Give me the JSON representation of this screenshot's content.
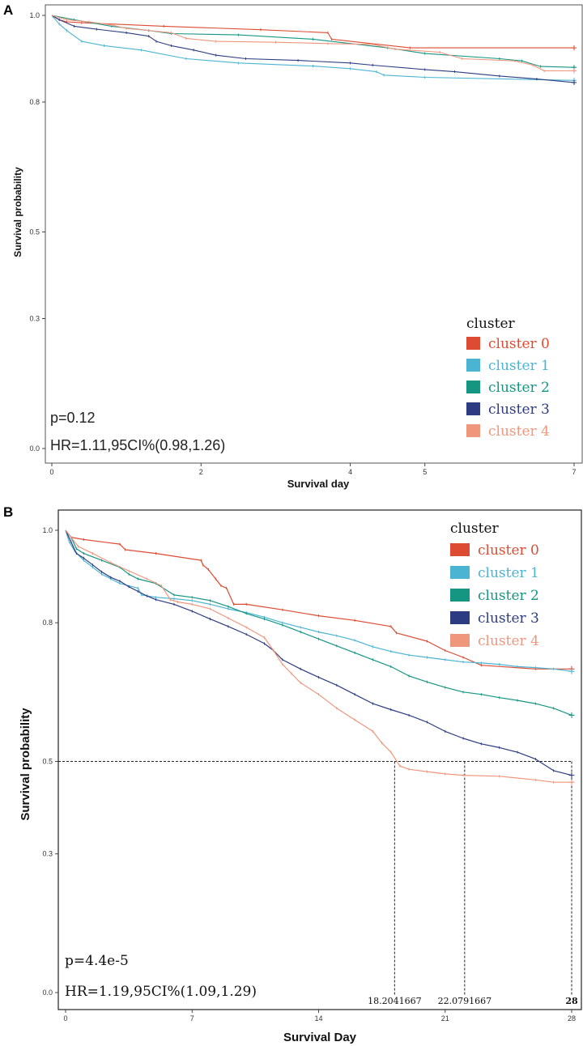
{
  "colors": {
    "cluster 0": "#dc4b32",
    "cluster 1": "#4bb4d2",
    "cluster 2": "#149682",
    "cluster 3": "#2d3c82",
    "cluster 4": "#f0967d"
  },
  "chart_data": [
    {
      "type": "line",
      "panel_label": "A",
      "xlabel": "Survival day",
      "ylabel": "Survival probability",
      "xlim": [
        0,
        7
      ],
      "ylim": [
        0,
        1
      ],
      "x_ticks": [
        0,
        2,
        4,
        5,
        7
      ],
      "y_ticks": [
        1.0,
        0.8,
        0.5,
        0.3,
        0.0
      ],
      "legend_title": "cluster",
      "legend_entries": [
        "cluster 0",
        "cluster 1",
        "cluster 2",
        "cluster 3",
        "cluster 4"
      ],
      "legend_position": "bottom-right",
      "stat_p": "p=0.12",
      "stat_hr": "HR=1.11,95CI%(0.98,1.26)",
      "series": [
        {
          "name": "cluster 0",
          "points": [
            [
              0,
              1.0
            ],
            [
              0.1,
              0.99
            ],
            [
              0.2,
              0.985
            ],
            [
              0.4,
              0.983
            ],
            [
              1.5,
              0.975
            ],
            [
              2.8,
              0.967
            ],
            [
              3.7,
              0.96
            ],
            [
              3.75,
              0.945
            ],
            [
              4.8,
              0.925
            ],
            [
              7.0,
              0.925
            ]
          ]
        },
        {
          "name": "cluster 1",
          "points": [
            [
              0,
              1.0
            ],
            [
              0.1,
              0.98
            ],
            [
              0.2,
              0.965
            ],
            [
              0.4,
              0.94
            ],
            [
              0.7,
              0.93
            ],
            [
              1.2,
              0.92
            ],
            [
              1.8,
              0.9
            ],
            [
              2.5,
              0.89
            ],
            [
              3.5,
              0.883
            ],
            [
              4.0,
              0.877
            ],
            [
              4.35,
              0.87
            ],
            [
              4.45,
              0.862
            ],
            [
              5.0,
              0.857
            ],
            [
              7.0,
              0.85
            ]
          ]
        },
        {
          "name": "cluster 2",
          "points": [
            [
              0,
              1.0
            ],
            [
              0.3,
              0.99
            ],
            [
              0.8,
              0.975
            ],
            [
              1.3,
              0.965
            ],
            [
              1.6,
              0.958
            ],
            [
              2.5,
              0.955
            ],
            [
              3.5,
              0.945
            ],
            [
              4.5,
              0.925
            ],
            [
              5.0,
              0.912
            ],
            [
              6.0,
              0.9
            ],
            [
              6.3,
              0.895
            ],
            [
              6.55,
              0.882
            ],
            [
              7.0,
              0.88
            ]
          ]
        },
        {
          "name": "cluster 3",
          "points": [
            [
              0,
              1.0
            ],
            [
              0.1,
              0.99
            ],
            [
              0.3,
              0.975
            ],
            [
              0.6,
              0.968
            ],
            [
              1.0,
              0.96
            ],
            [
              1.3,
              0.952
            ],
            [
              1.4,
              0.94
            ],
            [
              1.6,
              0.93
            ],
            [
              1.9,
              0.92
            ],
            [
              2.2,
              0.908
            ],
            [
              2.6,
              0.9
            ],
            [
              3.3,
              0.896
            ],
            [
              4.0,
              0.89
            ],
            [
              4.3,
              0.885
            ],
            [
              5.0,
              0.875
            ],
            [
              5.4,
              0.87
            ],
            [
              6.0,
              0.86
            ],
            [
              6.5,
              0.853
            ],
            [
              7.0,
              0.845
            ]
          ]
        },
        {
          "name": "cluster 4",
          "points": [
            [
              0,
              1.0
            ],
            [
              0.2,
              0.99
            ],
            [
              0.5,
              0.985
            ],
            [
              0.8,
              0.978
            ],
            [
              1.0,
              0.97
            ],
            [
              1.6,
              0.96
            ],
            [
              1.8,
              0.947
            ],
            [
              2.2,
              0.94
            ],
            [
              3.0,
              0.938
            ],
            [
              3.7,
              0.935
            ],
            [
              4.3,
              0.933
            ],
            [
              4.6,
              0.922
            ],
            [
              5.2,
              0.915
            ],
            [
              5.5,
              0.9
            ],
            [
              6.2,
              0.895
            ],
            [
              6.45,
              0.885
            ],
            [
              6.6,
              0.872
            ],
            [
              7.0,
              0.872
            ]
          ]
        }
      ]
    },
    {
      "type": "line",
      "panel_label": "B",
      "xlabel": "Survival Day",
      "ylabel": "Survival probability",
      "xlim": [
        0,
        28
      ],
      "ylim": [
        0,
        1
      ],
      "x_ticks": [
        0,
        7,
        14,
        21,
        28
      ],
      "y_ticks": [
        1.0,
        0.8,
        0.5,
        0.3,
        0.0
      ],
      "legend_title": "cluster",
      "legend_entries": [
        "cluster 0",
        "cluster 1",
        "cluster 2",
        "cluster 3",
        "cluster 4"
      ],
      "legend_position": "top-right",
      "stat_p": "p=4.4e-5",
      "stat_hr": "HR=1.19,95CI%(1.09,1.29)",
      "median_line_y": 0.5,
      "median_labels": [
        "18.2041667",
        "22.0791667",
        "28"
      ],
      "median_values": [
        18.2041667,
        22.0791667,
        28
      ],
      "series": [
        {
          "name": "cluster 0",
          "points": [
            [
              0,
              1.0
            ],
            [
              0.3,
              0.985
            ],
            [
              1,
              0.98
            ],
            [
              3,
              0.97
            ],
            [
              3.3,
              0.958
            ],
            [
              5,
              0.95
            ],
            [
              7.5,
              0.935
            ],
            [
              7.6,
              0.925
            ],
            [
              7.9,
              0.915
            ],
            [
              8.3,
              0.895
            ],
            [
              8.6,
              0.88
            ],
            [
              8.9,
              0.875
            ],
            [
              9.3,
              0.84
            ],
            [
              10,
              0.84
            ],
            [
              12,
              0.828
            ],
            [
              14,
              0.815
            ],
            [
              16,
              0.805
            ],
            [
              18,
              0.792
            ],
            [
              18.3,
              0.778
            ],
            [
              20,
              0.76
            ],
            [
              21,
              0.74
            ],
            [
              22,
              0.725
            ],
            [
              23,
              0.708
            ],
            [
              26,
              0.7
            ],
            [
              28,
              0.7
            ]
          ]
        },
        {
          "name": "cluster 1",
          "points": [
            [
              0,
              1.0
            ],
            [
              0.2,
              0.975
            ],
            [
              0.5,
              0.955
            ],
            [
              1,
              0.935
            ],
            [
              1.5,
              0.92
            ],
            [
              2,
              0.905
            ],
            [
              2.5,
              0.895
            ],
            [
              3,
              0.885
            ],
            [
              4,
              0.875
            ],
            [
              4.2,
              0.86
            ],
            [
              5,
              0.855
            ],
            [
              6,
              0.852
            ],
            [
              7,
              0.848
            ],
            [
              8,
              0.84
            ],
            [
              9,
              0.83
            ],
            [
              10,
              0.822
            ],
            [
              11,
              0.812
            ],
            [
              12,
              0.8
            ],
            [
              13,
              0.79
            ],
            [
              14,
              0.78
            ],
            [
              15,
              0.772
            ],
            [
              16,
              0.762
            ],
            [
              17,
              0.748
            ],
            [
              18,
              0.738
            ],
            [
              19,
              0.73
            ],
            [
              20,
              0.725
            ],
            [
              21,
              0.72
            ],
            [
              22,
              0.715
            ],
            [
              23,
              0.713
            ],
            [
              24,
              0.71
            ],
            [
              25,
              0.705
            ],
            [
              26,
              0.703
            ],
            [
              27,
              0.7
            ],
            [
              28,
              0.695
            ]
          ]
        },
        {
          "name": "cluster 2",
          "points": [
            [
              0,
              1.0
            ],
            [
              0.3,
              0.985
            ],
            [
              0.6,
              0.96
            ],
            [
              1,
              0.95
            ],
            [
              2,
              0.935
            ],
            [
              3,
              0.92
            ],
            [
              3.5,
              0.905
            ],
            [
              4,
              0.895
            ],
            [
              5,
              0.885
            ],
            [
              6,
              0.86
            ],
            [
              7,
              0.855
            ],
            [
              8,
              0.848
            ],
            [
              9,
              0.835
            ],
            [
              10,
              0.82
            ],
            [
              11,
              0.808
            ],
            [
              12,
              0.795
            ],
            [
              13,
              0.78
            ],
            [
              14,
              0.765
            ],
            [
              15,
              0.75
            ],
            [
              16,
              0.735
            ],
            [
              17,
              0.72
            ],
            [
              18,
              0.705
            ],
            [
              19,
              0.685
            ],
            [
              20,
              0.672
            ],
            [
              21,
              0.66
            ],
            [
              22,
              0.65
            ],
            [
              23,
              0.645
            ],
            [
              24,
              0.638
            ],
            [
              25,
              0.632
            ],
            [
              26,
              0.625
            ],
            [
              27,
              0.615
            ],
            [
              28,
              0.6
            ]
          ]
        },
        {
          "name": "cluster 3",
          "points": [
            [
              0,
              1.0
            ],
            [
              0.3,
              0.975
            ],
            [
              0.6,
              0.95
            ],
            [
              1,
              0.94
            ],
            [
              1.5,
              0.925
            ],
            [
              2,
              0.91
            ],
            [
              2.5,
              0.898
            ],
            [
              3,
              0.89
            ],
            [
              3.5,
              0.878
            ],
            [
              4,
              0.868
            ],
            [
              4.5,
              0.858
            ],
            [
              5,
              0.85
            ],
            [
              6,
              0.84
            ],
            [
              7,
              0.825
            ],
            [
              8,
              0.808
            ],
            [
              9,
              0.792
            ],
            [
              10,
              0.775
            ],
            [
              11,
              0.755
            ],
            [
              11.5,
              0.74
            ],
            [
              12,
              0.72
            ],
            [
              13,
              0.7
            ],
            [
              14,
              0.682
            ],
            [
              15,
              0.665
            ],
            [
              16,
              0.645
            ],
            [
              17,
              0.625
            ],
            [
              18,
              0.612
            ],
            [
              19,
              0.6
            ],
            [
              20,
              0.585
            ],
            [
              21,
              0.565
            ],
            [
              22,
              0.55
            ],
            [
              23,
              0.538
            ],
            [
              24,
              0.53
            ],
            [
              25,
              0.52
            ],
            [
              26,
              0.505
            ],
            [
              27,
              0.48
            ],
            [
              28,
              0.47
            ]
          ]
        },
        {
          "name": "cluster 4",
          "points": [
            [
              0,
              1.0
            ],
            [
              0.3,
              0.985
            ],
            [
              0.7,
              0.965
            ],
            [
              1.5,
              0.95
            ],
            [
              2.5,
              0.93
            ],
            [
              3.5,
              0.912
            ],
            [
              4.5,
              0.895
            ],
            [
              5.3,
              0.88
            ],
            [
              5.8,
              0.85
            ],
            [
              6.2,
              0.845
            ],
            [
              7,
              0.84
            ],
            [
              8,
              0.83
            ],
            [
              9,
              0.81
            ],
            [
              10,
              0.79
            ],
            [
              11,
              0.768
            ],
            [
              11.5,
              0.74
            ],
            [
              12,
              0.71
            ],
            [
              12.5,
              0.69
            ],
            [
              13,
              0.67
            ],
            [
              14,
              0.645
            ],
            [
              15,
              0.615
            ],
            [
              16,
              0.59
            ],
            [
              17,
              0.565
            ],
            [
              17.5,
              0.54
            ],
            [
              18,
              0.52
            ],
            [
              18.5,
              0.49
            ],
            [
              19,
              0.483
            ],
            [
              20,
              0.478
            ],
            [
              21,
              0.473
            ],
            [
              22,
              0.47
            ],
            [
              24,
              0.468
            ],
            [
              26,
              0.46
            ],
            [
              27,
              0.455
            ],
            [
              28,
              0.455
            ]
          ]
        }
      ]
    }
  ]
}
